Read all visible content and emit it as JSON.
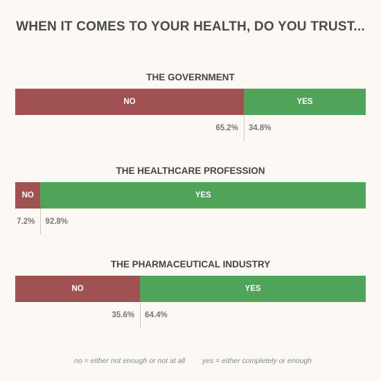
{
  "title": "WHEN IT COMES TO YOUR HEALTH, DO YOU TRUST...",
  "colors": {
    "no": "#a05252",
    "yes": "#4fa45a"
  },
  "chart_data": {
    "type": "bar",
    "orientation": "horizontal-stacked-100",
    "categories": [
      "THE GOVERNMENT",
      "THE HEALTHCARE PROFESSION",
      "THE PHARMACEUTICAL INDUSTRY"
    ],
    "series": [
      {
        "name": "NO",
        "values": [
          65.2,
          7.2,
          35.6
        ],
        "labels": [
          "65.2%",
          "7.2%",
          "35.6%"
        ]
      },
      {
        "name": "YES",
        "values": [
          34.8,
          92.8,
          64.4
        ],
        "labels": [
          "34.8%",
          "92.8%",
          "64.4%"
        ]
      }
    ]
  },
  "footnotes": {
    "no": "no = either not enough or not at all",
    "yes": "yes = either completely or enough"
  }
}
